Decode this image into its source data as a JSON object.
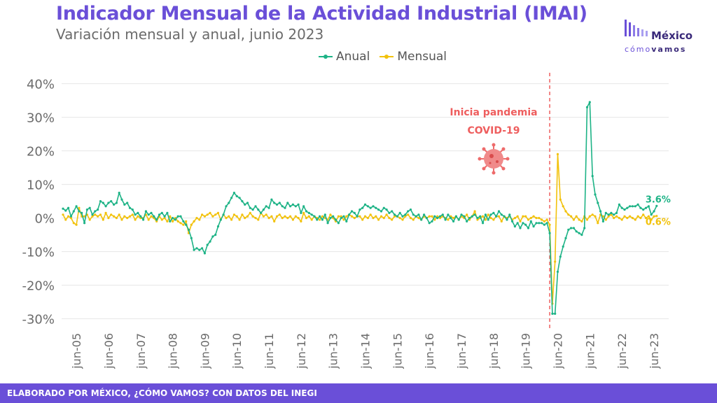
{
  "header": {
    "title": "Indicador Mensual de la Actividad Industrial (IMAI)",
    "subtitle": "Variación mensual y anual, junio 2023"
  },
  "logo": {
    "name_line1": "México",
    "name_line2_a": "cómo",
    "name_line2_b": "vamos"
  },
  "footer": {
    "text": "ELABORADO POR MÉXICO, ¿CÓMO VAMOS? CON DATOS DEL INEGI"
  },
  "annotation": {
    "line1": "Inicia pandemia",
    "line2": "COVID-19",
    "icon": "virus-icon",
    "color": "#ee5e5e"
  },
  "chart_data": {
    "type": "line",
    "title": "Indicador Mensual de la Actividad Industrial (IMAI)",
    "subtitle": "Variación mensual y anual, junio 2023",
    "x_tick_labels": [
      "jun-05",
      "jun-06",
      "jun-07",
      "jun-08",
      "jun-09",
      "jun-10",
      "jun-11",
      "jun-12",
      "jun-13",
      "jun-14",
      "jun-15",
      "jun-16",
      "jun-17",
      "jun-18",
      "jun-19",
      "jun-20",
      "jun-21",
      "jun-22",
      "jun-23"
    ],
    "x_start": "2005-01",
    "x_end": "2023-06",
    "y_ticks": [
      "-30%",
      "-20%",
      "-10%",
      "0%",
      "10%",
      "20%",
      "30%",
      "40%"
    ],
    "ylim": [
      -33,
      42
    ],
    "grid": "horizontal",
    "legend_position": "top-center",
    "series": [
      {
        "name": "Anual",
        "color": "#1db386",
        "end_label": "3.6%",
        "values": [
          2.8,
          2.2,
          3.0,
          0.5,
          2.0,
          3.5,
          2.0,
          1.5,
          -1.5,
          2.5,
          3.0,
          1.0,
          2.0,
          2.5,
          5.0,
          4.5,
          3.5,
          4.5,
          5.0,
          4.0,
          4.5,
          7.5,
          5.5,
          4.0,
          4.5,
          3.0,
          2.5,
          1.0,
          1.5,
          0.5,
          -0.5,
          2.0,
          1.0,
          1.5,
          0.5,
          -0.5,
          1.0,
          1.5,
          0.5,
          1.5,
          -1.0,
          0.0,
          -0.5,
          0.5,
          0.5,
          -1.0,
          -2.0,
          -3.5,
          -6.0,
          -9.5,
          -9.0,
          -9.5,
          -9.0,
          -10.5,
          -8.0,
          -7.0,
          -5.5,
          -5.0,
          -2.5,
          -0.5,
          1.0,
          3.5,
          4.5,
          6.0,
          7.5,
          6.5,
          6.0,
          5.0,
          4.0,
          4.5,
          3.0,
          2.5,
          3.5,
          2.5,
          1.5,
          2.5,
          3.5,
          3.0,
          5.5,
          4.5,
          4.0,
          4.5,
          3.5,
          3.0,
          4.5,
          3.5,
          4.0,
          3.5,
          4.0,
          1.5,
          3.5,
          2.0,
          1.5,
          1.0,
          0.5,
          -0.5,
          0.5,
          -0.5,
          1.0,
          -1.5,
          0.0,
          0.5,
          -0.5,
          -1.5,
          0.0,
          0.5,
          -1.0,
          1.0,
          2.0,
          1.5,
          0.5,
          2.5,
          3.0,
          4.0,
          3.5,
          3.0,
          3.5,
          3.0,
          2.5,
          2.0,
          3.0,
          2.5,
          1.5,
          2.0,
          1.0,
          0.5,
          1.5,
          0.5,
          1.0,
          2.0,
          2.5,
          1.0,
          0.5,
          1.0,
          -0.5,
          1.0,
          0.0,
          -1.5,
          -1.0,
          0.5,
          0.0,
          0.5,
          1.0,
          -0.5,
          1.0,
          0.0,
          -1.0,
          0.5,
          -0.5,
          1.0,
          0.5,
          -1.0,
          0.0,
          0.5,
          1.0,
          0.0,
          0.5,
          -1.5,
          1.0,
          -0.5,
          1.0,
          1.5,
          0.5,
          2.0,
          1.0,
          0.5,
          -0.5,
          1.0,
          -1.0,
          -2.5,
          -1.5,
          -3.0,
          -1.5,
          -2.0,
          -3.0,
          -1.0,
          -2.5,
          -1.5,
          -1.5,
          -1.5,
          -2.0,
          -1.5,
          -4.5,
          -28.5,
          -28.5,
          -16.0,
          -11.5,
          -8.5,
          -6.0,
          -3.5,
          -3.0,
          -3.0,
          -4.0,
          -4.5,
          -5.0,
          -3.0,
          33.0,
          34.5,
          12.5,
          7.0,
          4.5,
          2.0,
          -1.0,
          1.5,
          1.0,
          1.5,
          1.0,
          1.5,
          4.0,
          3.0,
          2.5,
          3.0,
          3.5,
          3.5,
          3.5,
          4.0,
          3.0,
          2.5,
          3.0,
          3.5,
          1.0,
          2.0,
          3.6
        ]
      },
      {
        "name": "Mensual",
        "color": "#f2c20c",
        "end_label": "0.6%",
        "values": [
          1.0,
          -0.5,
          0.5,
          0.0,
          -1.5,
          -2.0,
          3.0,
          0.5,
          0.5,
          1.0,
          -0.5,
          0.5,
          1.0,
          0.5,
          1.0,
          -0.5,
          1.5,
          0.0,
          1.0,
          0.5,
          0.0,
          1.0,
          -0.5,
          0.5,
          0.0,
          0.5,
          1.0,
          -0.5,
          0.5,
          0.0,
          0.0,
          1.0,
          -0.5,
          0.5,
          0.0,
          -1.0,
          0.5,
          -0.5,
          0.0,
          -1.0,
          0.5,
          -1.0,
          0.0,
          -1.0,
          -1.5,
          -2.0,
          -1.0,
          -4.5,
          -2.0,
          -1.0,
          0.0,
          -0.5,
          1.0,
          0.5,
          1.0,
          1.5,
          0.5,
          1.0,
          1.5,
          -0.5,
          1.0,
          0.0,
          0.5,
          -0.5,
          1.0,
          0.5,
          -0.5,
          1.0,
          0.0,
          0.5,
          1.5,
          0.5,
          0.0,
          -0.5,
          1.5,
          0.5,
          1.0,
          0.0,
          0.5,
          -1.0,
          0.5,
          1.0,
          0.0,
          0.5,
          0.0,
          0.5,
          -0.5,
          0.5,
          0.0,
          -1.0,
          1.5,
          0.0,
          0.5,
          -0.5,
          0.5,
          0.0,
          -0.5,
          0.5,
          0.0,
          -0.5,
          1.0,
          0.0,
          -1.0,
          0.5,
          0.5,
          -0.5,
          0.5,
          1.0,
          0.5,
          0.0,
          0.5,
          0.5,
          -0.5,
          0.5,
          0.0,
          1.0,
          0.0,
          0.5,
          -0.5,
          0.5,
          0.0,
          1.0,
          0.0,
          -0.5,
          0.5,
          0.5,
          0.0,
          -0.5,
          0.5,
          1.0,
          0.0,
          -0.5,
          0.5,
          0.0,
          -0.5,
          0.5,
          0.0,
          0.5,
          0.5,
          -0.5,
          0.5,
          0.0,
          0.5,
          0.0,
          -0.5,
          0.5,
          0.0,
          0.5,
          -0.5,
          0.5,
          0.0,
          1.0,
          -0.5,
          0.5,
          2.0,
          -0.5,
          0.0,
          0.5,
          -0.5,
          1.0,
          0.0,
          -0.5,
          0.5,
          0.5,
          -1.0,
          0.5,
          0.0,
          0.5,
          -0.5,
          0.0,
          0.5,
          -1.0,
          0.5,
          0.5,
          -0.5,
          0.0,
          0.5,
          0.0,
          0.0,
          -0.5,
          -1.0,
          -0.5,
          -2.0,
          -25.5,
          -13.0,
          19.0,
          5.5,
          3.5,
          2.0,
          1.0,
          0.5,
          -0.5,
          0.5,
          -0.5,
          -1.0,
          0.5,
          -0.5,
          0.5,
          1.0,
          0.5,
          -1.5,
          1.0,
          0.5,
          -0.5,
          0.5,
          1.0,
          0.0,
          0.5,
          0.0,
          -0.5,
          0.5,
          0.0,
          0.5,
          0.0,
          -0.5,
          0.5,
          0.0,
          1.0,
          0.0,
          0.5,
          -0.5,
          0.5,
          0.6
        ]
      }
    ],
    "events": [
      {
        "x": "2020-03",
        "label": "Inicia pandemia COVID-19"
      }
    ]
  }
}
